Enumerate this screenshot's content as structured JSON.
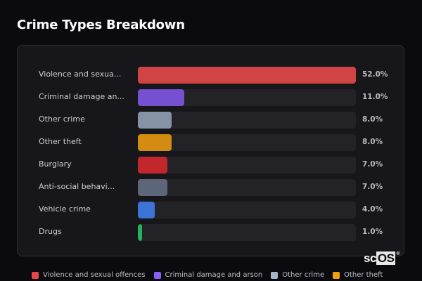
{
  "header": {
    "title": "Crime Types Breakdown"
  },
  "chart_data": {
    "type": "bar",
    "orientation": "horizontal",
    "title": "Crime Types Breakdown",
    "xlabel": "",
    "ylabel": "",
    "xlim": [
      0,
      52
    ],
    "categories": [
      "Violence and sexual offences",
      "Criminal damage and arson",
      "Other crime",
      "Other theft",
      "Burglary",
      "Anti-social behaviour",
      "Vehicle crime",
      "Drugs"
    ],
    "display_labels": [
      "Violence and sexua...",
      "Criminal damage an...",
      "Other crime",
      "Other theft",
      "Burglary",
      "Anti-social behavi...",
      "Vehicle crime",
      "Drugs"
    ],
    "values": [
      52.0,
      11.0,
      8.0,
      8.0,
      7.0,
      7.0,
      4.0,
      1.0
    ],
    "value_labels": [
      "52.0%",
      "11.0%",
      "8.0%",
      "8.0%",
      "7.0%",
      "7.0%",
      "4.0%",
      "1.0%"
    ],
    "colors": [
      "#d04444",
      "#7550d0",
      "#8593a6",
      "#d38b12",
      "#c1272d",
      "#5c6678",
      "#3c73d6",
      "#24b358"
    ],
    "legend_position": "bottom",
    "grid": false
  },
  "rows": [
    {
      "label": "Violence and sexua...",
      "value": "52.0%",
      "pct": 52.0,
      "color": "#d04444"
    },
    {
      "label": "Criminal damage an...",
      "value": "11.0%",
      "pct": 11.0,
      "color": "#7550d0"
    },
    {
      "label": "Other crime",
      "value": "8.0%",
      "pct": 8.0,
      "color": "#8593a6"
    },
    {
      "label": "Other theft",
      "value": "8.0%",
      "pct": 8.0,
      "color": "#d38b12"
    },
    {
      "label": "Burglary",
      "value": "7.0%",
      "pct": 7.0,
      "color": "#c1272d"
    },
    {
      "label": "Anti-social behavi...",
      "value": "7.0%",
      "pct": 7.0,
      "color": "#5c6678"
    },
    {
      "label": "Vehicle crime",
      "value": "4.0%",
      "pct": 4.0,
      "color": "#3c73d6"
    },
    {
      "label": "Drugs",
      "value": "1.0%",
      "pct": 1.0,
      "color": "#24b358"
    }
  ],
  "legend": [
    {
      "label": "Violence and sexual offences",
      "color": "#e5484d"
    },
    {
      "label": "Criminal damage and arson",
      "color": "#8b5cf6"
    },
    {
      "label": "Other crime",
      "color": "#a6b4c8"
    },
    {
      "label": "Other theft",
      "color": "#f59e0b"
    }
  ],
  "brand": {
    "sc": "sc",
    "os": "OS",
    "mark": "®"
  }
}
